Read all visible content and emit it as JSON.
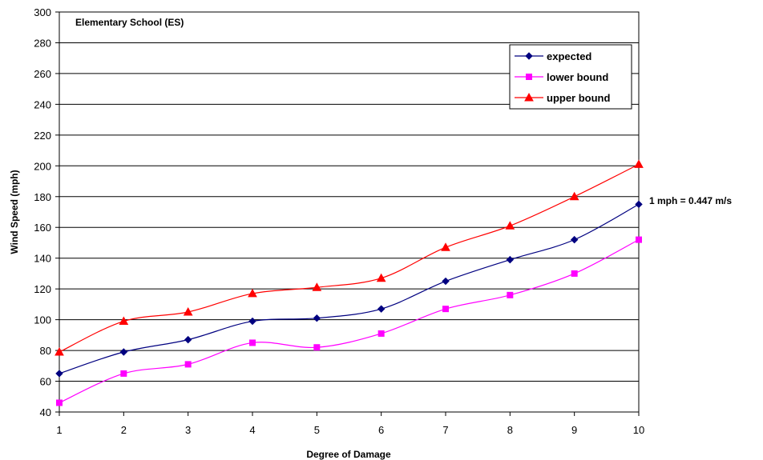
{
  "chart_data": {
    "type": "line",
    "title": "Elementary School (ES)",
    "xlabel": "Degree of Damage",
    "ylabel": "Wind Speed (mph)",
    "x": [
      1,
      2,
      3,
      4,
      5,
      6,
      7,
      8,
      9,
      10
    ],
    "xlim": [
      1,
      10
    ],
    "ylim": [
      40,
      300
    ],
    "y_ticks": [
      40,
      60,
      80,
      100,
      120,
      140,
      160,
      180,
      200,
      220,
      240,
      260,
      280,
      300
    ],
    "grid": "horizontal",
    "legend_position": "top-right",
    "annotation": "1 mph = 0.447 m/s",
    "series": [
      {
        "name": "expected",
        "color": "#000080",
        "marker": "diamond",
        "values": [
          65,
          79,
          87,
          99,
          101,
          107,
          125,
          139,
          152,
          175
        ]
      },
      {
        "name": "lower bound",
        "color": "#FF00FF",
        "marker": "square",
        "values": [
          46,
          65,
          71,
          85,
          82,
          91,
          107,
          116,
          130,
          152
        ]
      },
      {
        "name": "upper bound",
        "color": "#FF0000",
        "marker": "triangle",
        "values": [
          79,
          99,
          105,
          117,
          121,
          127,
          147,
          161,
          180,
          201
        ]
      }
    ]
  }
}
